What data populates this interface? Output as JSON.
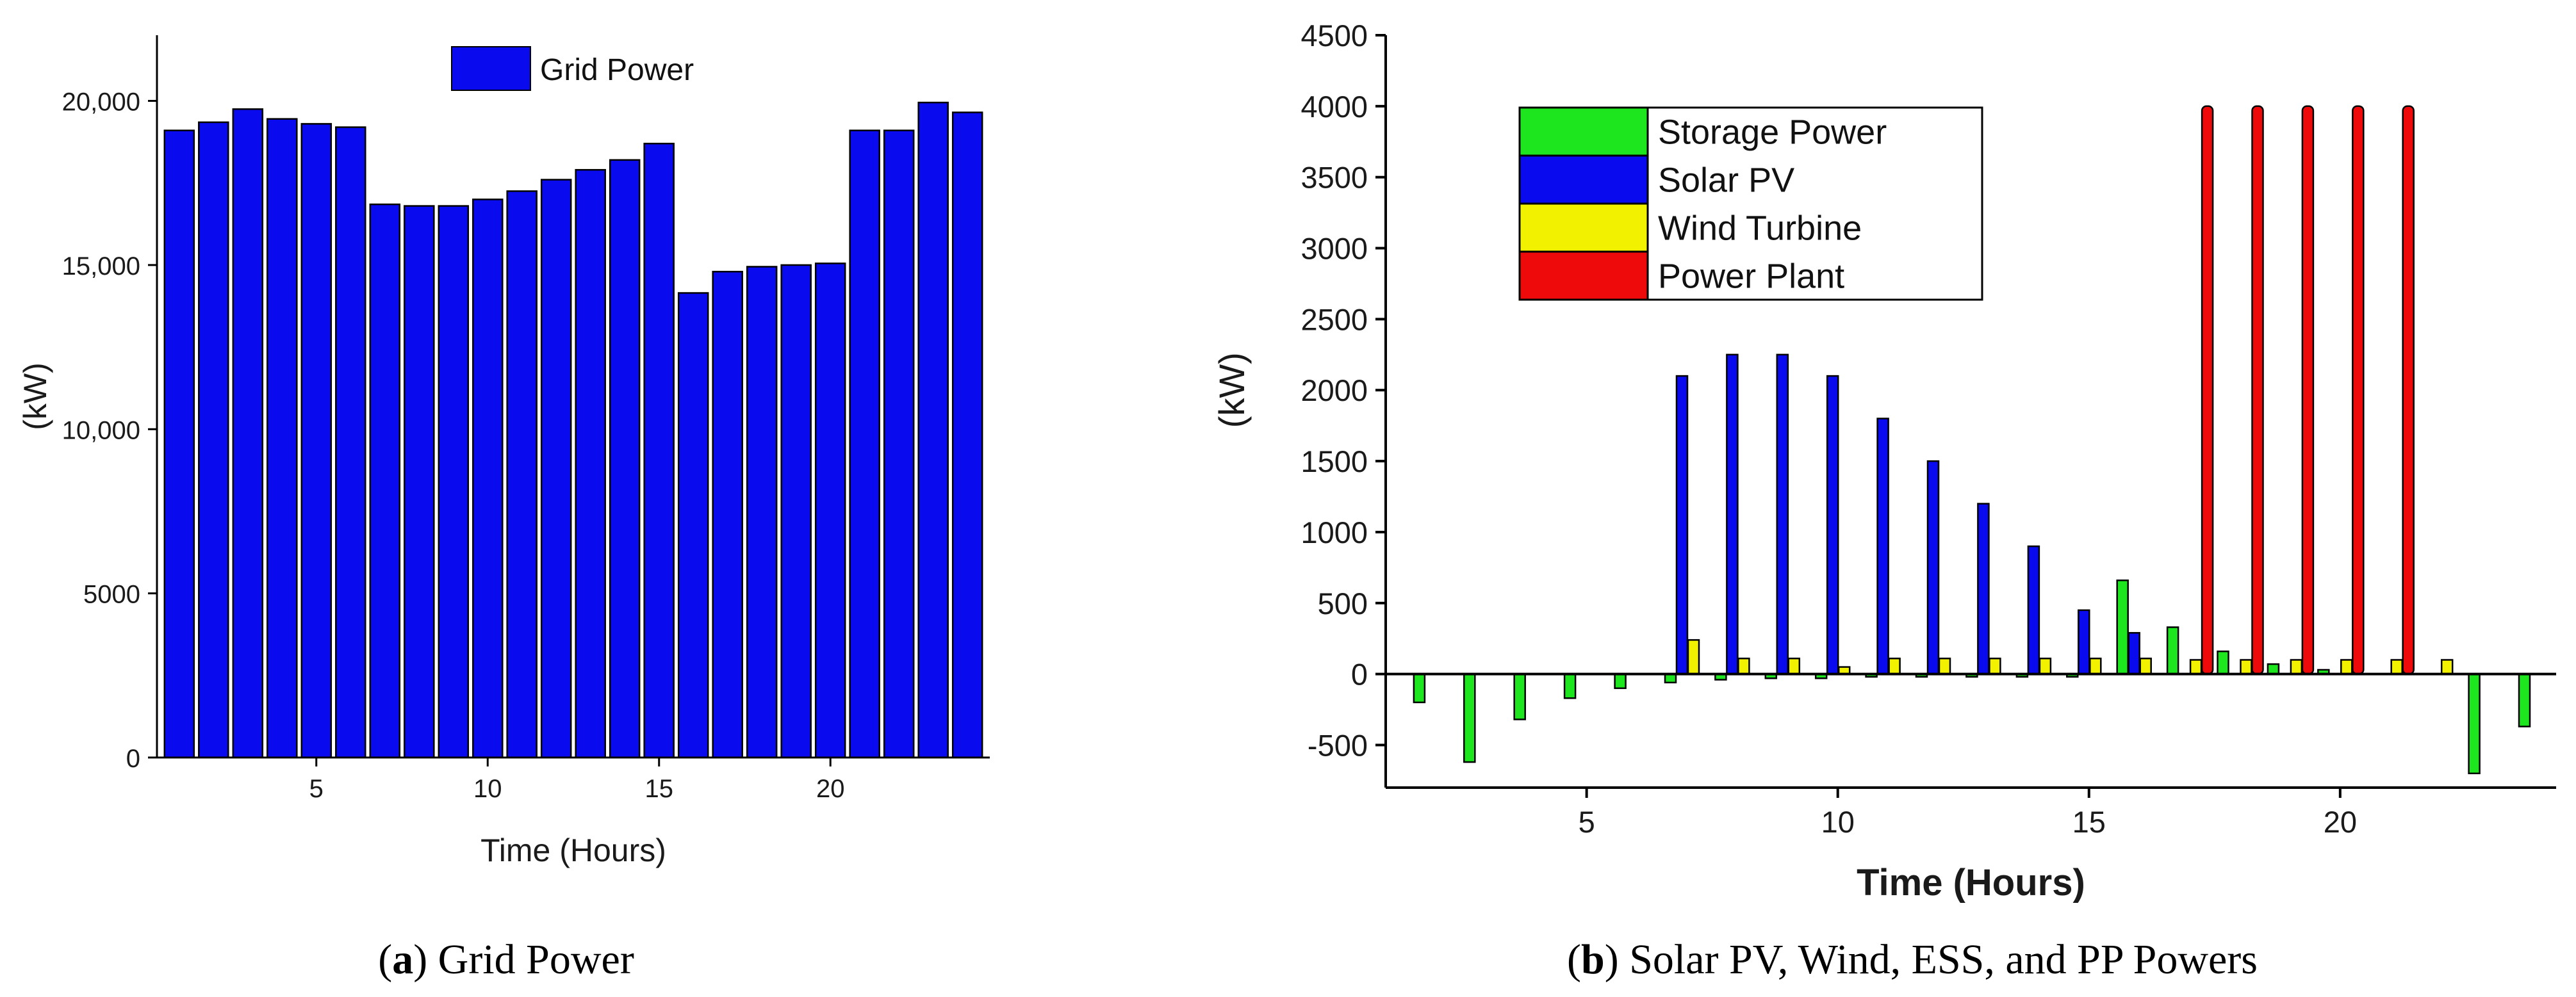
{
  "figure": {
    "caption_a": {
      "label": "a",
      "text": " Grid Power"
    },
    "caption_b": {
      "label": "b",
      "text": " Solar PV, Wind, ESS, and PP Powers"
    }
  },
  "colors": {
    "grid_power": "#0a0aee",
    "storage": "#1ee61e",
    "solar": "#0a0aee",
    "wind": "#f2f200",
    "plant": "#ee0a0a",
    "outline": "#000000"
  },
  "chart_data": [
    {
      "id": "a",
      "type": "bar",
      "title": "",
      "xlabel": "Time (Hours)",
      "ylabel": "(kW)",
      "xlim": [
        0.35,
        24.65
      ],
      "ylim": [
        0,
        22000
      ],
      "xticks": [
        5,
        10,
        15,
        20
      ],
      "xtick_labels": [
        "5",
        "10",
        "15",
        "20"
      ],
      "yticks": [
        0,
        5000,
        10000,
        15000,
        20000
      ],
      "ytick_labels": [
        "0",
        "5000",
        "10,000",
        "15,000",
        "20,000"
      ],
      "legend": {
        "position": "top-center",
        "entries": [
          "Grid Power"
        ]
      },
      "x": [
        1,
        2,
        3,
        4,
        5,
        6,
        7,
        8,
        9,
        10,
        11,
        12,
        13,
        14,
        15,
        16,
        17,
        18,
        19,
        20,
        21,
        22,
        23,
        24
      ],
      "series": [
        {
          "name": "Grid Power",
          "color_key": "grid_power",
          "values": [
            19100,
            19350,
            19750,
            19450,
            19300,
            19200,
            16850,
            16800,
            16800,
            17000,
            17250,
            17600,
            17900,
            18200,
            18700,
            14150,
            14800,
            14950,
            15000,
            15050,
            19100,
            19100,
            19950,
            19650
          ]
        }
      ]
    },
    {
      "id": "b",
      "type": "bar",
      "title": "",
      "xlabel": "Time (Hours)",
      "ylabel": "(kW)",
      "xlim": [
        1,
        24.3
      ],
      "ylim": [
        -800,
        4500
      ],
      "xticks": [
        5,
        10,
        15,
        20
      ],
      "xtick_labels": [
        "5",
        "10",
        "15",
        "20"
      ],
      "yticks": [
        -500,
        0,
        500,
        1000,
        1500,
        2000,
        2500,
        3000,
        3500,
        4000,
        4500
      ],
      "ytick_labels": [
        "-500",
        "0",
        "500",
        "1000",
        "1500",
        "2000",
        "2500",
        "3000",
        "3500",
        "4000",
        "4500"
      ],
      "legend": {
        "position": "top-left",
        "entries": [
          "Storage Power",
          "Solar PV",
          "Wind Turbine",
          "Power Plant"
        ]
      },
      "x": [
        1,
        2,
        3,
        4,
        5,
        6,
        7,
        8,
        9,
        10,
        11,
        12,
        13,
        14,
        15,
        16,
        17,
        18,
        19,
        20,
        21,
        22,
        23,
        24
      ],
      "series": [
        {
          "name": "Storage Power",
          "color_key": "storage",
          "values": [
            0,
            -200,
            -620,
            -320,
            -170,
            -100,
            -60,
            -40,
            -30,
            -30,
            -20,
            -20,
            -20,
            -20,
            -20,
            660,
            330,
            160,
            70,
            30,
            0,
            0,
            -700,
            -370
          ]
        },
        {
          "name": "Solar PV",
          "color_key": "solar",
          "values": [
            0,
            0,
            0,
            0,
            0,
            0,
            2100,
            2250,
            2250,
            2100,
            1800,
            1500,
            1200,
            900,
            450,
            290,
            0,
            0,
            0,
            0,
            0,
            0,
            0,
            0
          ]
        },
        {
          "name": "Wind Turbine",
          "color_key": "wind",
          "values": [
            0,
            0,
            0,
            0,
            0,
            0,
            240,
            110,
            110,
            50,
            110,
            110,
            110,
            110,
            110,
            110,
            100,
            100,
            100,
            100,
            100,
            100,
            0,
            0
          ]
        },
        {
          "name": "Power Plant",
          "color_key": "plant",
          "values": [
            0,
            0,
            0,
            0,
            0,
            0,
            0,
            0,
            0,
            0,
            0,
            0,
            0,
            0,
            0,
            0,
            4000,
            4000,
            4000,
            4000,
            4000,
            0,
            0,
            0
          ]
        }
      ]
    }
  ]
}
